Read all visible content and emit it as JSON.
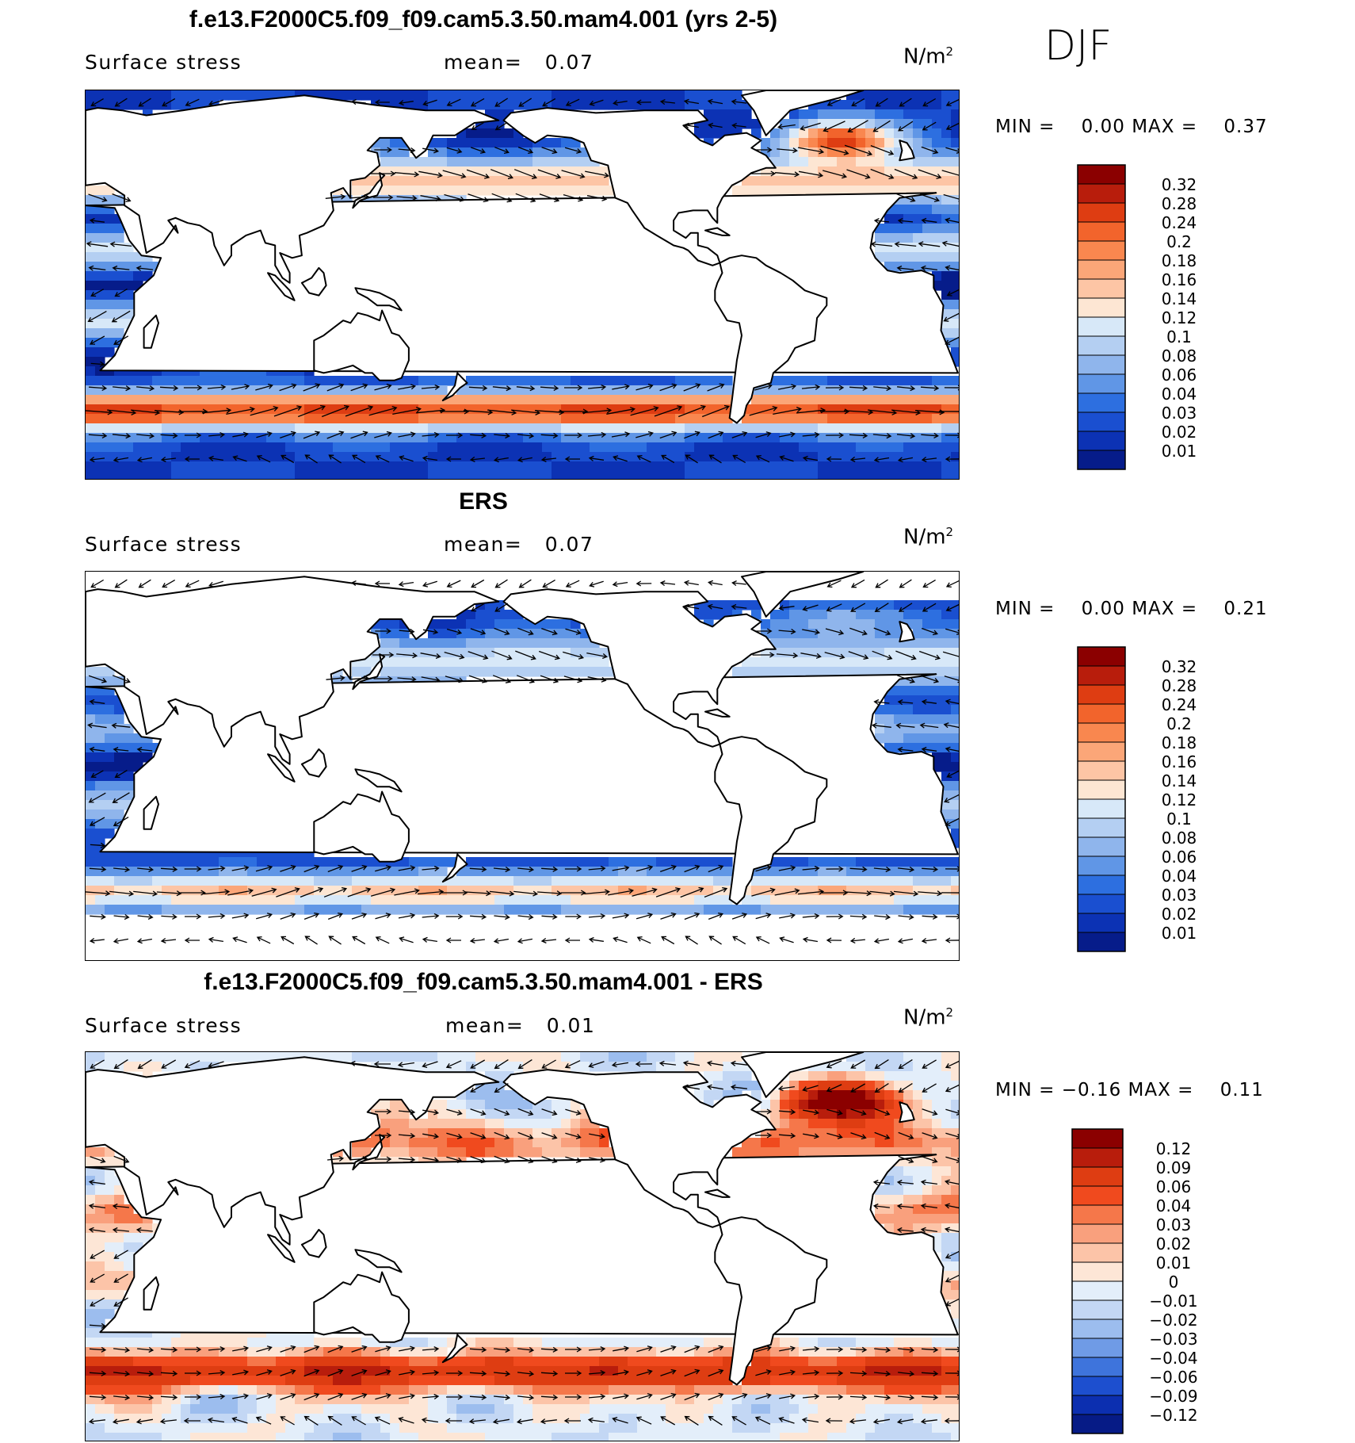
{
  "season": "DJF",
  "chart_data": [
    {
      "type": "heatmap",
      "title": "f.e13.F2000C5.f09_f09.cam5.3.50.mam4.001 (yrs 2-5)",
      "variable": "Surface stress",
      "mean_label": "mean=",
      "mean": "0.07",
      "units": "N/m",
      "units_sup": "2",
      "min_label": "MIN =",
      "min": "0.00",
      "max_label": "MAX =",
      "max": "0.37",
      "levels": [
        "0.32",
        "0.28",
        "0.24",
        "0.2",
        "0.18",
        "0.16",
        "0.14",
        "0.12",
        "0.1",
        "0.08",
        "0.06",
        "0.04",
        "0.03",
        "0.02",
        "0.01"
      ],
      "colors": [
        "#8b0000",
        "#b81d0c",
        "#de3d12",
        "#f2642c",
        "#f9874f",
        "#fba678",
        "#fdc5a5",
        "#fde6d3",
        "#d7e8f8",
        "#b4cff2",
        "#8fb5ec",
        "#6096e6",
        "#2d6fe0",
        "#1a4fd0",
        "#0c32b4",
        "#061c8a"
      ]
    },
    {
      "type": "heatmap",
      "title": "ERS",
      "variable": "Surface stress",
      "mean_label": "mean=",
      "mean": "0.07",
      "units": "N/m",
      "units_sup": "2",
      "min_label": "MIN =",
      "min": "0.00",
      "max_label": "MAX =",
      "max": "0.21",
      "levels": [
        "0.32",
        "0.28",
        "0.24",
        "0.2",
        "0.18",
        "0.16",
        "0.14",
        "0.12",
        "0.1",
        "0.08",
        "0.06",
        "0.04",
        "0.03",
        "0.02",
        "0.01"
      ],
      "colors": [
        "#8b0000",
        "#b81d0c",
        "#de3d12",
        "#f2642c",
        "#f9874f",
        "#fba678",
        "#fdc5a5",
        "#fde6d3",
        "#d7e8f8",
        "#b4cff2",
        "#8fb5ec",
        "#6096e6",
        "#2d6fe0",
        "#1a4fd0",
        "#0c32b4",
        "#061c8a"
      ]
    },
    {
      "type": "heatmap",
      "title": "f.e13.F2000C5.f09_f09.cam5.3.50.mam4.001 - ERS",
      "variable": "Surface stress",
      "mean_label": "mean=",
      "mean": "0.01",
      "units": "N/m",
      "units_sup": "2",
      "min_label": "MIN =",
      "min": "−0.16",
      "max_label": "MAX =",
      "max": "0.11",
      "levels": [
        "0.12",
        "0.09",
        "0.06",
        "0.04",
        "0.03",
        "0.02",
        "0.01",
        "0",
        "−0.01",
        "−0.02",
        "−0.03",
        "−0.04",
        "−0.06",
        "−0.09",
        "−0.12"
      ],
      "colors": [
        "#8b0000",
        "#b81d0c",
        "#de3d12",
        "#f04a1e",
        "#f5774a",
        "#f9a07d",
        "#fcc4a8",
        "#fde6d6",
        "#e3eefa",
        "#c3d7f4",
        "#9cbdee",
        "#6f9be6",
        "#3e74dc",
        "#1d4fcf",
        "#0c2fb0",
        "#061b86"
      ]
    }
  ]
}
